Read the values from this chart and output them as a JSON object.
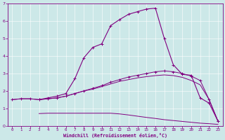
{
  "xlabel": "Windchill (Refroidissement éolien,°C)",
  "bg_color": "#cce8e8",
  "line_color": "#800080",
  "xlim": [
    -0.5,
    23.5
  ],
  "ylim": [
    0,
    7
  ],
  "xticks": [
    0,
    1,
    2,
    3,
    4,
    5,
    6,
    7,
    8,
    9,
    10,
    11,
    12,
    13,
    14,
    15,
    16,
    17,
    18,
    19,
    20,
    21,
    22,
    23
  ],
  "yticks": [
    0,
    1,
    2,
    3,
    4,
    5,
    6,
    7
  ],
  "curve1_x": [
    0,
    1,
    2,
    3,
    4,
    5,
    6,
    7,
    8,
    9,
    10,
    11,
    12,
    13,
    14,
    15,
    16,
    17,
    18,
    19,
    20,
    21,
    22,
    23
  ],
  "curve1_y": [
    1.5,
    1.55,
    1.55,
    1.5,
    1.55,
    1.6,
    1.7,
    1.85,
    2.0,
    2.15,
    2.3,
    2.5,
    2.65,
    2.8,
    2.9,
    3.0,
    3.1,
    3.15,
    3.1,
    3.0,
    2.85,
    2.6,
    1.5,
    0.25
  ],
  "curve2_x": [
    0,
    1,
    2,
    3,
    4,
    5,
    6,
    7,
    8,
    9,
    10,
    11,
    12,
    13,
    14,
    15,
    16,
    17,
    18,
    19,
    20,
    21,
    22,
    23
  ],
  "curve2_y": [
    1.5,
    1.55,
    1.55,
    1.5,
    1.55,
    1.6,
    1.7,
    1.85,
    2.0,
    2.1,
    2.25,
    2.4,
    2.55,
    2.65,
    2.75,
    2.82,
    2.88,
    2.92,
    2.88,
    2.78,
    2.6,
    2.35,
    1.5,
    0.25
  ],
  "curve3_x": [
    3,
    4,
    5,
    6,
    7,
    8,
    9,
    10,
    11,
    12,
    13,
    14,
    15,
    16,
    17,
    18,
    19,
    20,
    21,
    22,
    23
  ],
  "curve3_y": [
    0.7,
    0.72,
    0.72,
    0.72,
    0.72,
    0.72,
    0.72,
    0.72,
    0.72,
    0.68,
    0.62,
    0.55,
    0.48,
    0.42,
    0.35,
    0.3,
    0.25,
    0.2,
    0.15,
    0.12,
    0.08
  ],
  "curve4_x": [
    3,
    4,
    5,
    6,
    7,
    8,
    9,
    10,
    11,
    12,
    13,
    14,
    15,
    16,
    17,
    18,
    19,
    20,
    21,
    22,
    23
  ],
  "curve4_y": [
    1.5,
    1.6,
    1.7,
    1.85,
    2.7,
    3.9,
    4.5,
    4.7,
    5.75,
    6.1,
    6.4,
    6.55,
    6.7,
    6.75,
    5.0,
    3.5,
    2.95,
    2.9,
    1.6,
    1.3,
    0.25
  ],
  "grid_color": "#ffffff",
  "spine_color": "#800080"
}
